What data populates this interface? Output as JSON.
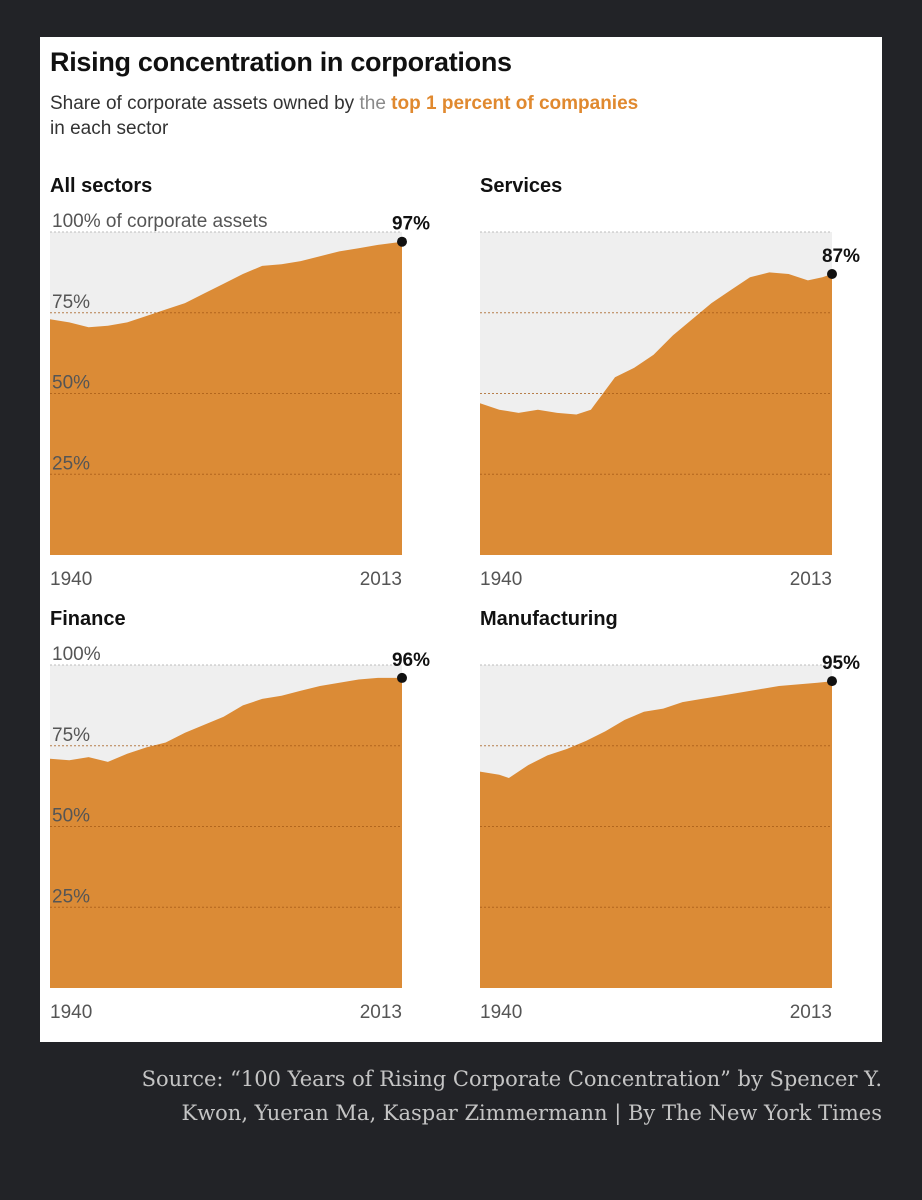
{
  "header": {
    "title": "Rising concentration in corporations",
    "subtitle_prefix": "Share of corporate assets owned by ",
    "subtitle_muted": "the",
    "subtitle_accent": "top 1 percent of companies",
    "subtitle_suffix": "in each sector"
  },
  "footer": {
    "source": "Source: “100 Years of Rising Corporate Concentration” by Spencer Y. Kwon, Yueran Ma, Kaspar Zimmermann | By The New York Times"
  },
  "colors": {
    "area_fill": "#db8b36",
    "plot_background": "#efefef",
    "accent_text": "#e0892f",
    "page_background": "#222327"
  },
  "chart_data": [
    {
      "type": "area",
      "title": "All sectors",
      "x": [
        1940,
        1944,
        1948,
        1952,
        1956,
        1960,
        1964,
        1968,
        1972,
        1976,
        1980,
        1984,
        1988,
        1992,
        1996,
        2000,
        2004,
        2008,
        2013
      ],
      "values": [
        73,
        72,
        70.5,
        71,
        72,
        74,
        76,
        78,
        81,
        84,
        87,
        89.5,
        90,
        91,
        92.5,
        94,
        95,
        96,
        97
      ],
      "y_tick_labels": [
        "100% of corporate assets",
        "75%",
        "50%",
        "25%"
      ],
      "y_ticks": [
        100,
        75,
        50,
        25
      ],
      "x_tick_labels": [
        "1940",
        "2013"
      ],
      "end_label": "97%",
      "ylim": [
        0,
        100
      ],
      "grid": true
    },
    {
      "type": "area",
      "title": "Services",
      "x": [
        1940,
        1944,
        1948,
        1952,
        1956,
        1960,
        1963,
        1964,
        1968,
        1972,
        1976,
        1980,
        1984,
        1988,
        1992,
        1996,
        2000,
        2004,
        2008,
        2011,
        2013
      ],
      "values": [
        47,
        45,
        44,
        45,
        44,
        43.5,
        45,
        47,
        55,
        58,
        62,
        68,
        73,
        78,
        82,
        86,
        87.5,
        87,
        85,
        86,
        87
      ],
      "y_tick_labels": [],
      "y_ticks": [
        100,
        75,
        50,
        25
      ],
      "x_tick_labels": [
        "1940",
        "2013"
      ],
      "end_label": "87%",
      "ylim": [
        0,
        100
      ],
      "grid": true
    },
    {
      "type": "area",
      "title": "Finance",
      "x": [
        1940,
        1944,
        1948,
        1952,
        1956,
        1960,
        1964,
        1968,
        1972,
        1976,
        1980,
        1984,
        1988,
        1992,
        1996,
        2000,
        2004,
        2008,
        2013
      ],
      "values": [
        71,
        70.5,
        71.5,
        70,
        72.5,
        74.5,
        76,
        79,
        81.5,
        84,
        87.5,
        89.5,
        90.5,
        92,
        93.5,
        94.5,
        95.5,
        96,
        96
      ],
      "y_tick_labels": [
        "100%",
        "75%",
        "50%",
        "25%"
      ],
      "y_ticks": [
        100,
        75,
        50,
        25
      ],
      "x_tick_labels": [
        "1940",
        "2013"
      ],
      "end_label": "96%",
      "ylim": [
        0,
        100
      ],
      "grid": true
    },
    {
      "type": "area",
      "title": "Manufacturing",
      "x": [
        1940,
        1944,
        1946,
        1950,
        1954,
        1958,
        1962,
        1966,
        1970,
        1974,
        1978,
        1982,
        1986,
        1990,
        1994,
        1998,
        2002,
        2006,
        2010,
        2013
      ],
      "values": [
        67,
        66,
        65,
        69,
        72,
        74,
        76.5,
        79.5,
        83,
        85.5,
        86.5,
        88.5,
        89.5,
        90.5,
        91.5,
        92.5,
        93.5,
        94,
        94.5,
        95
      ],
      "y_tick_labels": [],
      "y_ticks": [
        100,
        75,
        50,
        25
      ],
      "x_tick_labels": [
        "1940",
        "2013"
      ],
      "end_label": "95%",
      "ylim": [
        0,
        100
      ],
      "grid": true
    }
  ]
}
